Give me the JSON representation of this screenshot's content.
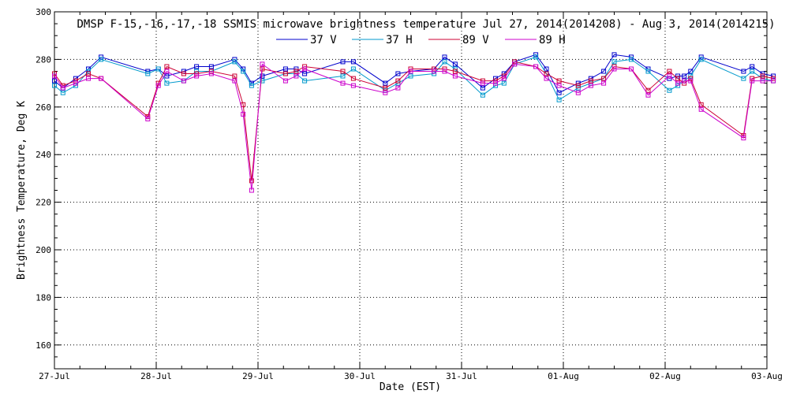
{
  "chart_data": {
    "type": "line",
    "title": "DMSP F-15,-16,-17,-18 SSMIS microwave brightness temperature Jul 27, 2014(2014208) - Aug  3, 2014(2014215)",
    "xlabel": "Date (EST)",
    "ylabel": "Brightness Temperature, Deg K",
    "xlim": [
      "2014-07-27 00:00",
      "2014-08-03 00:00"
    ],
    "ylim": [
      150,
      300
    ],
    "grid": true,
    "legend_position": "top",
    "x_tick_labels": [
      "27-Jul",
      "28-Jul",
      "29-Jul",
      "30-Jul",
      "31-Jul",
      "01-Aug",
      "02-Aug",
      "03-Aug"
    ],
    "y_tick_labels": [
      "160",
      "180",
      "200",
      "220",
      "240",
      "260",
      "280",
      "300"
    ],
    "x": [
      "2014-07-27 00:00",
      "2014-07-27 02:00",
      "2014-07-27 05:00",
      "2014-07-27 08:00",
      "2014-07-27 11:00",
      "2014-07-27 22:00",
      "2014-07-28 00:30",
      "2014-07-28 02:30",
      "2014-07-28 06:30",
      "2014-07-28 09:30",
      "2014-07-28 13:00",
      "2014-07-28 18:30",
      "2014-07-28 20:30",
      "2014-07-28 22:30",
      "2014-07-29 01:00",
      "2014-07-29 06:30",
      "2014-07-29 09:00",
      "2014-07-29 11:00",
      "2014-07-29 20:00",
      "2014-07-29 22:30",
      "2014-07-30 06:00",
      "2014-07-30 09:00",
      "2014-07-30 12:00",
      "2014-07-30 17:30",
      "2014-07-30 20:00",
      "2014-07-30 22:30",
      "2014-07-31 05:00",
      "2014-07-31 08:00",
      "2014-07-31 10:00",
      "2014-07-31 12:30",
      "2014-07-31 17:30",
      "2014-07-31 20:00",
      "2014-07-31 23:00",
      "2014-08-01 03:30",
      "2014-08-01 06:30",
      "2014-08-01 09:30",
      "2014-08-01 12:00",
      "2014-08-01 16:00",
      "2014-08-01 20:00",
      "2014-08-02 01:00",
      "2014-08-02 03:00",
      "2014-08-02 04:30",
      "2014-08-02 06:00",
      "2014-08-02 08:30",
      "2014-08-02 18:30",
      "2014-08-02 20:30",
      "2014-08-02 23:00",
      "2014-08-03 01:30"
    ],
    "series": [
      {
        "name": "37 V",
        "color": "#0000cc",
        "values": [
          271,
          268,
          272,
          276,
          281,
          275,
          276,
          273,
          275,
          277,
          277,
          280,
          276,
          270,
          273,
          276,
          276,
          274,
          279,
          279,
          270,
          274,
          275,
          276,
          281,
          278,
          268,
          272,
          274,
          279,
          282,
          276,
          266,
          270,
          272,
          275,
          282,
          281,
          276,
          272,
          273,
          273,
          275,
          281,
          275,
          277,
          274,
          273
        ]
      },
      {
        "name": "37 H",
        "color": "#0099cc",
        "values": [
          269,
          266,
          269,
          275,
          280,
          274,
          276,
          270,
          271,
          275,
          275,
          279,
          275,
          269,
          271,
          274,
          274,
          271,
          273,
          276,
          267,
          270,
          273,
          274,
          279,
          276,
          265,
          269,
          270,
          278,
          281,
          274,
          263,
          268,
          270,
          272,
          279,
          280,
          275,
          267,
          269,
          271,
          273,
          280,
          272,
          275,
          272,
          271
        ]
      },
      {
        "name": "89 V",
        "color": "#cc0033",
        "values": [
          274,
          269,
          271,
          274,
          272,
          256,
          270,
          277,
          274,
          274,
          275,
          273,
          261,
          229,
          276,
          274,
          275,
          277,
          275,
          272,
          268,
          271,
          276,
          276,
          276,
          275,
          271,
          271,
          273,
          279,
          277,
          274,
          271,
          269,
          271,
          272,
          277,
          276,
          267,
          275,
          272,
          270,
          272,
          261,
          248,
          272,
          273,
          272
        ]
      },
      {
        "name": "89 H",
        "color": "#cc00cc",
        "values": [
          273,
          268,
          270,
          272,
          272,
          255,
          269,
          275,
          271,
          273,
          274,
          271,
          257,
          225,
          278,
          271,
          273,
          276,
          270,
          269,
          266,
          268,
          275,
          275,
          275,
          273,
          270,
          270,
          272,
          278,
          277,
          272,
          269,
          266,
          269,
          270,
          276,
          276,
          265,
          273,
          270,
          271,
          271,
          259,
          247,
          271,
          271,
          271
        ]
      }
    ]
  }
}
